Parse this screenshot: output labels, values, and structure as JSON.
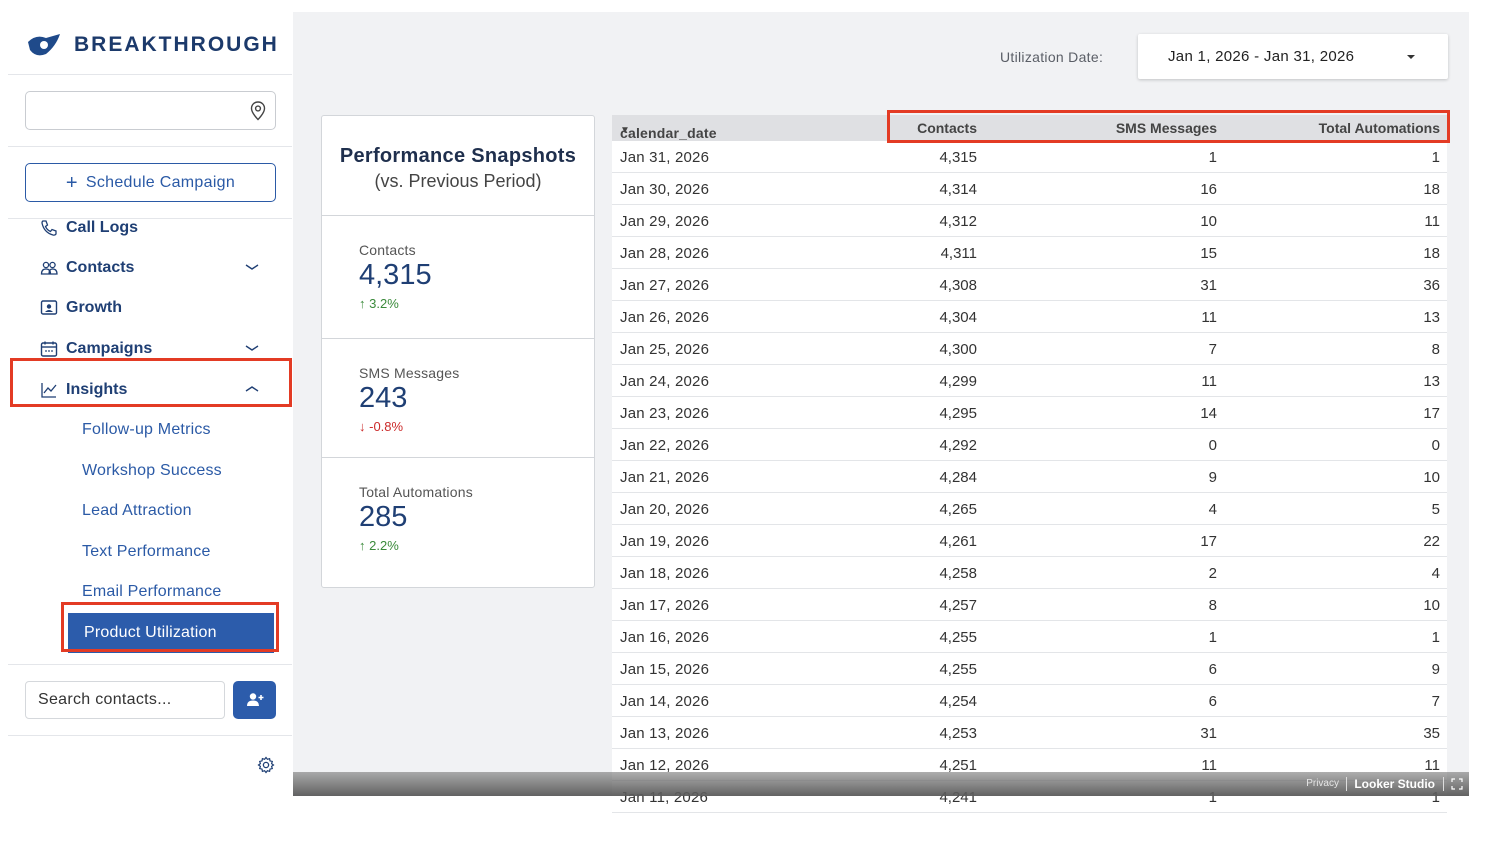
{
  "brand": {
    "name": "BREAKTHROUGH"
  },
  "sidebar": {
    "schedule_label": "Schedule Campaign",
    "nav": [
      {
        "label": "Call Logs"
      },
      {
        "label": "Contacts"
      },
      {
        "label": "Growth"
      },
      {
        "label": "Campaigns"
      },
      {
        "label": "Insights"
      }
    ],
    "insights_sub": [
      {
        "label": "Follow-up Metrics"
      },
      {
        "label": "Workshop Success"
      },
      {
        "label": "Lead Attraction"
      },
      {
        "label": "Text Performance"
      },
      {
        "label": "Email Performance"
      },
      {
        "label": "Product Utilization"
      }
    ],
    "search_placeholder": "Search contacts..."
  },
  "filter": {
    "label": "Utilization Date:",
    "value": "Jan 1, 2026 - Jan 31, 2026"
  },
  "snapshot": {
    "title": "Performance Snapshots",
    "subtitle": "(vs. Previous Period)",
    "metrics": [
      {
        "label": "Contacts",
        "value": "4,315",
        "change": "3.2%",
        "direction": "up"
      },
      {
        "label": "SMS Messages",
        "value": "243",
        "change": "-0.8%",
        "direction": "down"
      },
      {
        "label": "Total Automations",
        "value": "285",
        "change": "2.2%",
        "direction": "up"
      }
    ]
  },
  "table": {
    "headers": [
      "calendar_date",
      "Contacts",
      "SMS Messages",
      "Total Automations"
    ],
    "rows": [
      [
        "Jan 31, 2026",
        "4,315",
        "1",
        "1"
      ],
      [
        "Jan 30, 2026",
        "4,314",
        "16",
        "18"
      ],
      [
        "Jan 29, 2026",
        "4,312",
        "10",
        "11"
      ],
      [
        "Jan 28, 2026",
        "4,311",
        "15",
        "18"
      ],
      [
        "Jan 27, 2026",
        "4,308",
        "31",
        "36"
      ],
      [
        "Jan 26, 2026",
        "4,304",
        "11",
        "13"
      ],
      [
        "Jan 25, 2026",
        "4,300",
        "7",
        "8"
      ],
      [
        "Jan 24, 2026",
        "4,299",
        "11",
        "13"
      ],
      [
        "Jan 23, 2026",
        "4,295",
        "14",
        "17"
      ],
      [
        "Jan 22, 2026",
        "4,292",
        "0",
        "0"
      ],
      [
        "Jan 21, 2026",
        "4,284",
        "9",
        "10"
      ],
      [
        "Jan 20, 2026",
        "4,265",
        "4",
        "5"
      ],
      [
        "Jan 19, 2026",
        "4,261",
        "17",
        "22"
      ],
      [
        "Jan 18, 2026",
        "4,258",
        "2",
        "4"
      ],
      [
        "Jan 17, 2026",
        "4,257",
        "8",
        "10"
      ],
      [
        "Jan 16, 2026",
        "4,255",
        "1",
        "1"
      ],
      [
        "Jan 15, 2026",
        "4,255",
        "6",
        "9"
      ],
      [
        "Jan 14, 2026",
        "4,254",
        "6",
        "7"
      ],
      [
        "Jan 13, 2026",
        "4,253",
        "31",
        "35"
      ],
      [
        "Jan 12, 2026",
        "4,251",
        "11",
        "11"
      ],
      [
        "Jan 11, 2026",
        "4,241",
        "1",
        "1"
      ]
    ]
  },
  "footer": {
    "privacy": "Privacy",
    "product": "Looker Studio"
  }
}
